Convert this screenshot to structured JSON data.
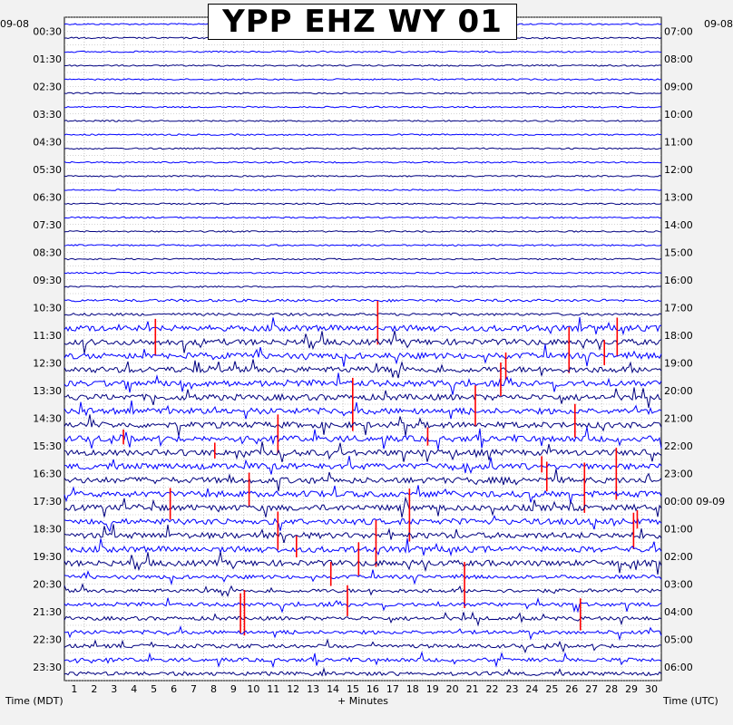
{
  "chart_data": {
    "type": "line",
    "title": "YPP EHZ WY 01",
    "date_left": "09-08",
    "date_right": "09-08",
    "left_axis_label": "Time (MDT)",
    "right_axis_label": "Time (UTC)",
    "x_axis_label": "+ Minutes",
    "x_ticks": [
      "1",
      "2",
      "3",
      "4",
      "5",
      "6",
      "7",
      "8",
      "9",
      "10",
      "11",
      "12",
      "13",
      "14",
      "15",
      "16",
      "17",
      "18",
      "19",
      "20",
      "21",
      "22",
      "23",
      "24",
      "25",
      "26",
      "27",
      "28",
      "29",
      "30"
    ],
    "x_range": [
      0,
      30
    ],
    "rows_per_hour": 2,
    "left_time_labels": [
      "00:30",
      "01:30",
      "02:30",
      "03:30",
      "04:30",
      "05:30",
      "06:30",
      "07:30",
      "08:30",
      "09:30",
      "10:30",
      "11:30",
      "12:30",
      "13:30",
      "14:30",
      "15:30",
      "16:30",
      "17:30",
      "18:30",
      "19:30",
      "20:30",
      "21:30",
      "22:30",
      "23:30"
    ],
    "right_time_labels": [
      "07:00",
      "08:00",
      "09:00",
      "10:00",
      "11:00",
      "12:00",
      "13:00",
      "14:00",
      "15:00",
      "16:00",
      "17:00",
      "18:00",
      "19:00",
      "20:00",
      "21:00",
      "22:00",
      "23:00",
      "00:00 09-09",
      "01:00",
      "02:00",
      "03:00",
      "04:00",
      "05:00",
      "06:00"
    ],
    "trace_colors": [
      "#0000ff",
      "#000080"
    ],
    "clip_color": "#ff0000",
    "grid": true
  }
}
